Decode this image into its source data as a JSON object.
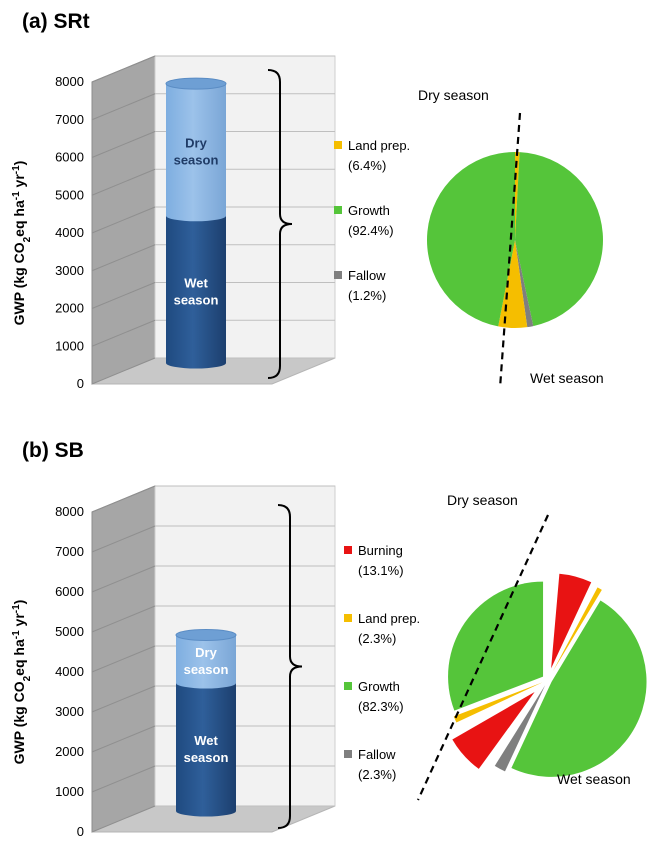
{
  "colors": {
    "dry": "#9cc2ea",
    "wet": "#2f5f9a",
    "burning": "#e81313",
    "land_prep": "#f5be00",
    "growth": "#55c53a",
    "fallow": "#7f7f7f"
  },
  "chart_data": [
    {
      "type": "bar",
      "panel": "(a) SRt",
      "ylabel_parts": [
        "GWP (kg CO",
        "2",
        "eq ha",
        "-1",
        " yr",
        "-1",
        ")"
      ],
      "yticks": [
        "0",
        "1000",
        "2000",
        "3000",
        "4000",
        "5000",
        "6000",
        "7000",
        "8000"
      ],
      "ylim": [
        0,
        8000
      ],
      "series": [
        {
          "label_lines": [
            "Wet",
            "season"
          ],
          "value": 3900,
          "color": "#2f5f9a"
        },
        {
          "label_lines": [
            "Dry",
            "season"
          ],
          "value": 3500,
          "color": "#9cc2ea"
        }
      ],
      "pie": {
        "type": "pie",
        "dry_label": "Dry season",
        "wet_label": "Wet season",
        "legend": [
          {
            "label": "Land prep.",
            "pct": "(6.4%)",
            "color": "#f5be00"
          },
          {
            "label": "Growth",
            "pct": "(92.4%)",
            "color": "#55c53a"
          },
          {
            "label": "Fallow",
            "pct": "(1.2%)",
            "color": "#7f7f7f"
          }
        ],
        "values": [
          6.4,
          92.4,
          1.2
        ]
      }
    },
    {
      "type": "bar",
      "panel": "(b) SB",
      "ylabel_parts": [
        "GWP (kg CO",
        "2",
        "eq ha",
        "-1",
        " yr",
        "-1",
        ")"
      ],
      "yticks": [
        "0",
        "1000",
        "2000",
        "3000",
        "4000",
        "5000",
        "6000",
        "7000",
        "8000"
      ],
      "ylim": [
        0,
        8000
      ],
      "series": [
        {
          "label_lines": [
            "Wet",
            "season"
          ],
          "value": 3200,
          "color": "#2f5f9a"
        },
        {
          "label_lines": [
            "Dry",
            "season"
          ],
          "value": 1200,
          "color": "#9cc2ea"
        }
      ],
      "pie": {
        "type": "pie",
        "dry_label": "Dry season",
        "wet_label": "Wet season",
        "legend": [
          {
            "label": "Burning",
            "pct": "(13.1%)",
            "color": "#e81313"
          },
          {
            "label": "Land prep.",
            "pct": "(2.3%)",
            "color": "#f5be00"
          },
          {
            "label": "Growth",
            "pct": "(82.3%)",
            "color": "#55c53a"
          },
          {
            "label": "Fallow",
            "pct": "(2.3%)",
            "color": "#7f7f7f"
          }
        ],
        "values": [
          13.1,
          2.3,
          82.3,
          2.3
        ]
      }
    }
  ]
}
